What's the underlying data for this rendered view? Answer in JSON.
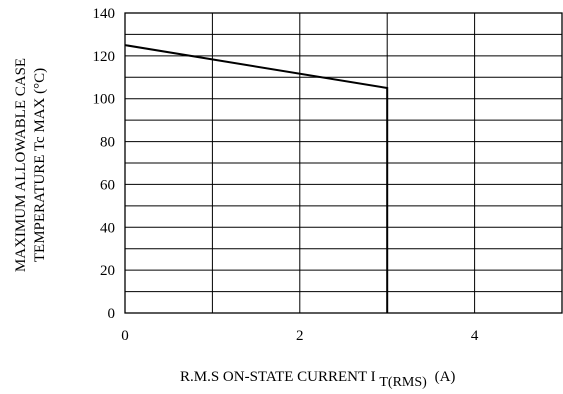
{
  "chart_data": {
    "type": "line",
    "title": "",
    "xlabel": "R.M.S ON-STATE CURRENT I",
    "xlabel_subscript": "T(RMS)",
    "xlabel_unit": "(A)",
    "ylabel_lines": [
      "MAXIMUM ALLOWABLE CASE",
      "TEMPERATURE Tc MAX (°C)"
    ],
    "xlim": [
      0,
      5
    ],
    "ylim": [
      0,
      140
    ],
    "x_ticks": [
      0,
      2,
      4
    ],
    "y_ticks": [
      0,
      20,
      40,
      60,
      80,
      100,
      120,
      140
    ],
    "x_grid_step": 1,
    "y_grid_step": 10,
    "grid": true,
    "series": [
      {
        "points": [
          [
            0,
            125
          ],
          [
            3,
            105
          ],
          [
            3,
            0
          ]
        ]
      }
    ]
  }
}
